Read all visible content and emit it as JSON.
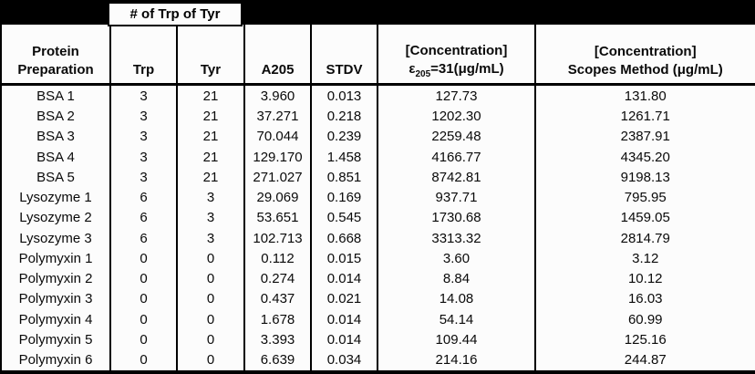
{
  "table": {
    "merged_header": "# of Trp of Tyr",
    "columns": {
      "protein": {
        "line1": "Protein",
        "line2": "Preparation"
      },
      "trp": "Trp",
      "tyr": "Tyr",
      "a205": "A205",
      "stdv": "STDV",
      "conc_e205": {
        "line1": "[Concentration]",
        "epsilon": "ε",
        "subscript": "205",
        "suffix": "=31(μg/mL)"
      },
      "conc_scopes": {
        "line1": "[Concentration]",
        "line2": "Scopes Method (μg/mL)"
      }
    },
    "rows": [
      {
        "name": "BSA 1",
        "trp": "3",
        "tyr": "21",
        "a205": "3.960",
        "stdv": "0.013",
        "conc_e205": "127.73",
        "conc_scopes": "131.80"
      },
      {
        "name": "BSA 2",
        "trp": "3",
        "tyr": "21",
        "a205": "37.271",
        "stdv": "0.218",
        "conc_e205": "1202.30",
        "conc_scopes": "1261.71"
      },
      {
        "name": "BSA 3",
        "trp": "3",
        "tyr": "21",
        "a205": "70.044",
        "stdv": "0.239",
        "conc_e205": "2259.48",
        "conc_scopes": "2387.91"
      },
      {
        "name": "BSA 4",
        "trp": "3",
        "tyr": "21",
        "a205": "129.170",
        "stdv": "1.458",
        "conc_e205": "4166.77",
        "conc_scopes": "4345.20"
      },
      {
        "name": "BSA 5",
        "trp": "3",
        "tyr": "21",
        "a205": "271.027",
        "stdv": "0.851",
        "conc_e205": "8742.81",
        "conc_scopes": "9198.13"
      },
      {
        "name": "Lysozyme 1",
        "trp": "6",
        "tyr": "3",
        "a205": "29.069",
        "stdv": "0.169",
        "conc_e205": "937.71",
        "conc_scopes": "795.95"
      },
      {
        "name": "Lysozyme 2",
        "trp": "6",
        "tyr": "3",
        "a205": "53.651",
        "stdv": "0.545",
        "conc_e205": "1730.68",
        "conc_scopes": "1459.05"
      },
      {
        "name": "Lysozyme 3",
        "trp": "6",
        "tyr": "3",
        "a205": "102.713",
        "stdv": "0.668",
        "conc_e205": "3313.32",
        "conc_scopes": "2814.79"
      },
      {
        "name": "Polymyxin 1",
        "trp": "0",
        "tyr": "0",
        "a205": "0.112",
        "stdv": "0.015",
        "conc_e205": "3.60",
        "conc_scopes": "3.12"
      },
      {
        "name": "Polymyxin 2",
        "trp": "0",
        "tyr": "0",
        "a205": "0.274",
        "stdv": "0.014",
        "conc_e205": "8.84",
        "conc_scopes": "10.12"
      },
      {
        "name": "Polymyxin 3",
        "trp": "0",
        "tyr": "0",
        "a205": "0.437",
        "stdv": "0.021",
        "conc_e205": "14.08",
        "conc_scopes": "16.03"
      },
      {
        "name": "Polymyxin 4",
        "trp": "0",
        "tyr": "0",
        "a205": "1.678",
        "stdv": "0.014",
        "conc_e205": "54.14",
        "conc_scopes": "60.99"
      },
      {
        "name": "Polymyxin 5",
        "trp": "0",
        "tyr": "0",
        "a205": "3.393",
        "stdv": "0.014",
        "conc_e205": "109.44",
        "conc_scopes": "125.16"
      },
      {
        "name": "Polymyxin 6",
        "trp": "0",
        "tyr": "0",
        "a205": "6.639",
        "stdv": "0.034",
        "conc_e205": "214.16",
        "conc_scopes": "244.87"
      }
    ]
  },
  "colors": {
    "border": "#000000",
    "top_band": "#000000",
    "cell_background": "#fcfcfc",
    "text": "#0a0a0a"
  },
  "chart_data": {
    "type": "table",
    "title": "",
    "merged_header": {
      "label": "# of Trp of Tyr",
      "spans": [
        "Trp",
        "Tyr"
      ]
    },
    "column_headers": [
      "Protein Preparation",
      "Trp",
      "Tyr",
      "A205",
      "STDV",
      "[Concentration] ε205=31(μg/mL)",
      "[Concentration] Scopes Method (μg/mL)"
    ],
    "rows": [
      [
        "BSA 1",
        "3",
        "21",
        "3.960",
        "0.013",
        "127.73",
        "131.80"
      ],
      [
        "BSA 2",
        "3",
        "21",
        "37.271",
        "0.218",
        "1202.30",
        "1261.71"
      ],
      [
        "BSA 3",
        "3",
        "21",
        "70.044",
        "0.239",
        "2259.48",
        "2387.91"
      ],
      [
        "BSA 4",
        "3",
        "21",
        "129.170",
        "1.458",
        "4166.77",
        "4345.20"
      ],
      [
        "BSA 5",
        "3",
        "21",
        "271.027",
        "0.851",
        "8742.81",
        "9198.13"
      ],
      [
        "Lysozyme 1",
        "6",
        "3",
        "29.069",
        "0.169",
        "937.71",
        "795.95"
      ],
      [
        "Lysozyme 2",
        "6",
        "3",
        "53.651",
        "0.545",
        "1730.68",
        "1459.05"
      ],
      [
        "Lysozyme 3",
        "6",
        "3",
        "102.713",
        "0.668",
        "3313.32",
        "2814.79"
      ],
      [
        "Polymyxin 1",
        "0",
        "0",
        "0.112",
        "0.015",
        "3.60",
        "3.12"
      ],
      [
        "Polymyxin 2",
        "0",
        "0",
        "0.274",
        "0.014",
        "8.84",
        "10.12"
      ],
      [
        "Polymyxin 3",
        "0",
        "0",
        "0.437",
        "0.021",
        "14.08",
        "16.03"
      ],
      [
        "Polymyxin 4",
        "0",
        "0",
        "1.678",
        "0.014",
        "54.14",
        "60.99"
      ],
      [
        "Polymyxin 5",
        "0",
        "0",
        "3.393",
        "0.014",
        "109.44",
        "125.16"
      ],
      [
        "Polymyxin 6",
        "0",
        "0",
        "6.639",
        "0.034",
        "214.16",
        "244.87"
      ]
    ]
  }
}
